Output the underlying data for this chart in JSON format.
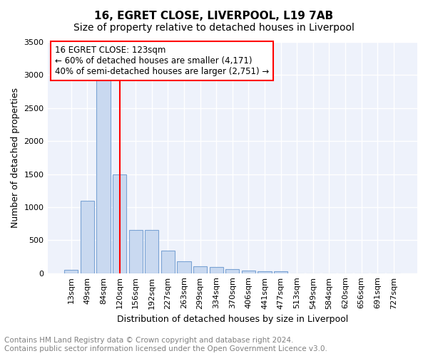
{
  "title": "16, EGRET CLOSE, LIVERPOOL, L19 7AB",
  "subtitle": "Size of property relative to detached houses in Liverpool",
  "xlabel": "Distribution of detached houses by size in Liverpool",
  "ylabel": "Number of detached properties",
  "categories": [
    "13sqm",
    "49sqm",
    "84sqm",
    "120sqm",
    "156sqm",
    "192sqm",
    "227sqm",
    "263sqm",
    "299sqm",
    "334sqm",
    "370sqm",
    "406sqm",
    "441sqm",
    "477sqm",
    "513sqm",
    "549sqm",
    "584sqm",
    "620sqm",
    "656sqm",
    "691sqm",
    "727sqm"
  ],
  "values": [
    50,
    1100,
    2950,
    1500,
    650,
    650,
    340,
    180,
    100,
    90,
    60,
    35,
    30,
    25,
    0,
    0,
    0,
    0,
    0,
    0,
    0
  ],
  "bar_color": "#c9d9f0",
  "bar_edge_color": "#7ba3d4",
  "red_line_index": 3,
  "red_line_label": "16 EGRET CLOSE: 123sqm",
  "annotation_line1": "← 60% of detached houses are smaller (4,171)",
  "annotation_line2": "40% of semi-detached houses are larger (2,751) →",
  "ylim": [
    0,
    3500
  ],
  "yticks": [
    0,
    500,
    1000,
    1500,
    2000,
    2500,
    3000,
    3500
  ],
  "bg_color": "#eef2fb",
  "grid_color": "#ffffff",
  "footer_line1": "Contains HM Land Registry data © Crown copyright and database right 2024.",
  "footer_line2": "Contains public sector information licensed under the Open Government Licence v3.0.",
  "title_fontsize": 11,
  "subtitle_fontsize": 10,
  "axis_label_fontsize": 9,
  "tick_fontsize": 8,
  "annotation_fontsize": 8.5,
  "footer_fontsize": 7.5
}
